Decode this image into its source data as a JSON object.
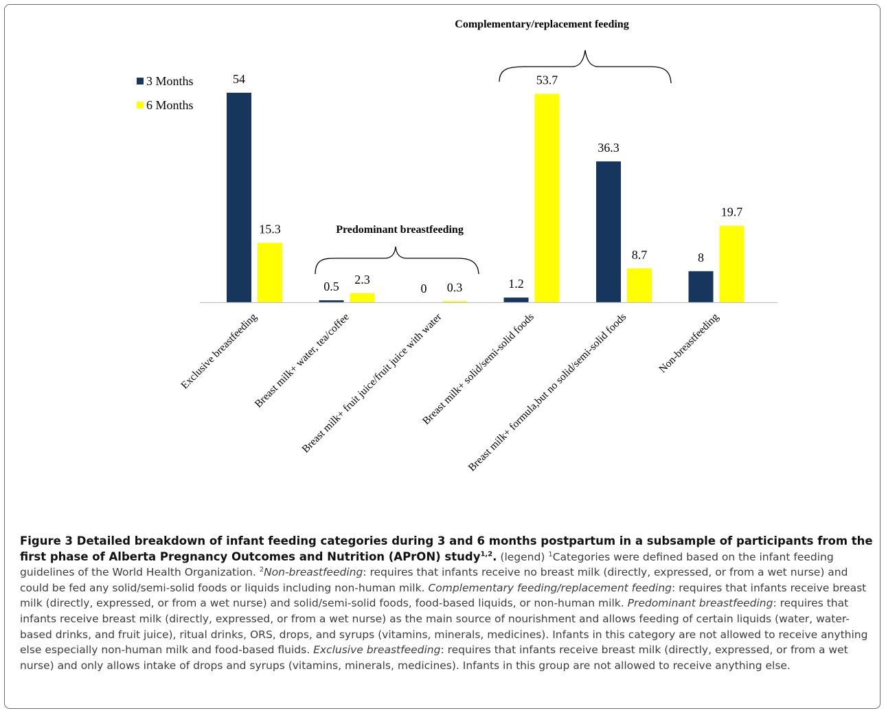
{
  "chart_data": {
    "type": "bar",
    "categories": [
      "Exclusive breastfeeding",
      "Breast milk+ water, tea/coffee",
      "Breast milk+ fruit juice/fruit juice with water",
      "Breast milk+ solid/semi-solid foods",
      "Breast milk+ formula,but no solid/semi-solid foods",
      "Non-breastfeeding"
    ],
    "series": [
      {
        "name": "3 Months",
        "values": [
          54,
          0.5,
          0,
          1.2,
          36.3,
          8
        ],
        "labels": [
          "54",
          "0.5",
          "0",
          "1.2",
          "36.3",
          "8"
        ],
        "color": "#17365d"
      },
      {
        "name": "6 Months",
        "values": [
          15.3,
          2.3,
          0.3,
          53.7,
          8.7,
          19.7
        ],
        "labels": [
          "15.3",
          "2.3",
          "0.3",
          "53.7",
          "8.7",
          "19.7"
        ],
        "color": "#ffff00"
      }
    ],
    "ylim": [
      0,
      54
    ],
    "legend": "top-left",
    "grid": false,
    "annotations": {
      "predominant": "Predominant breastfeeding",
      "complementary": "Complementary/replacement feeding"
    }
  },
  "caption": {
    "title": "Figure 3 Detailed breakdown of infant feeding categories during 3 and 6 months postpartum in a subsample of participants from the first phase of Alberta Pregnancy Outcomes and Nutrition (APrON) study",
    "title_sup": "1,2",
    "title_end": ".",
    "legend_tag": "(legend)",
    "sup1": "1",
    "text1": "Categories were defined based on the infant feeding guidelines of the World Health Organization.",
    "sup2": "2",
    "term_non": "Non-breastfeeding",
    "def_non": ": requires that infants receive no breast milk (directly, expressed, or from a wet nurse) and could be fed any solid/semi-solid foods or liquids including non-human milk.",
    "term_comp": "Complementary feeding/replacement feeding",
    "def_comp": ": requires that infants receive breast milk (directly, expressed, or from a wet nurse) and solid/semi-solid foods, food-based liquids, or non-human milk.",
    "term_pred": "Predominant breastfeeding",
    "def_pred": ": requires that infants receive breast milk (directly, expressed, or from a wet nurse) as the main source of nourishment and allows feeding of certain liquids (water, water-based drinks, and fruit juice), ritual drinks, ORS, drops, and syrups (vitamins, minerals, medicines). Infants in this category are not allowed to receive anything else especially non-human milk and food-based fluids.",
    "term_excl": "Exclusive breastfeeding",
    "def_excl": ": requires that infants receive breast milk (directly, expressed, or from a wet nurse) and only allows intake of drops and syrups (vitamins, minerals, medicines). Infants in this group are not allowed to receive anything else."
  }
}
